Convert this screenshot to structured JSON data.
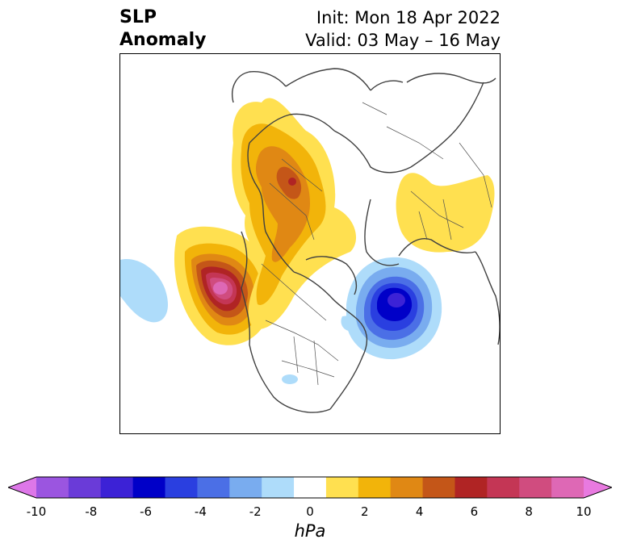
{
  "title": {
    "left_line1": "SLP",
    "left_line2": "Anomaly",
    "init": "Init: Mon 18 Apr 2022",
    "valid": "Valid: 03 May – 16 May"
  },
  "colorbar": {
    "unit": "hPa",
    "ticks": [
      "-10",
      "-8",
      "-6",
      "-4",
      "-2",
      "0",
      "2",
      "4",
      "6",
      "8",
      "10"
    ],
    "colors": [
      "#dd77e8",
      "#9b55e0",
      "#6a3bd8",
      "#3c22d6",
      "#0000c8",
      "#2a3fe0",
      "#4b6fe6",
      "#79acef",
      "#aedcfa",
      "#ffffff",
      "#ffe050",
      "#f2b40a",
      "#e08814",
      "#c45618",
      "#b02424",
      "#c43655",
      "#d04c7f",
      "#de68b5",
      "#e87ae0"
    ]
  },
  "map": {
    "features": [
      "coastlines",
      "country-borders",
      "state-borders"
    ],
    "anomalies": [
      {
        "name": "positive-anomaly-north-pacific",
        "sign": "positive",
        "peak_hPa": 10
      },
      {
        "name": "positive-anomaly-arctic-siberia",
        "sign": "positive",
        "peak_hPa": 6
      },
      {
        "name": "positive-anomaly-europe",
        "sign": "positive",
        "peak_hPa": 2
      },
      {
        "name": "negative-anomaly-north-atlantic",
        "sign": "negative",
        "peak_hPa": -6
      },
      {
        "name": "negative-anomaly-east-pacific",
        "sign": "negative",
        "peak_hPa": -2
      }
    ]
  }
}
